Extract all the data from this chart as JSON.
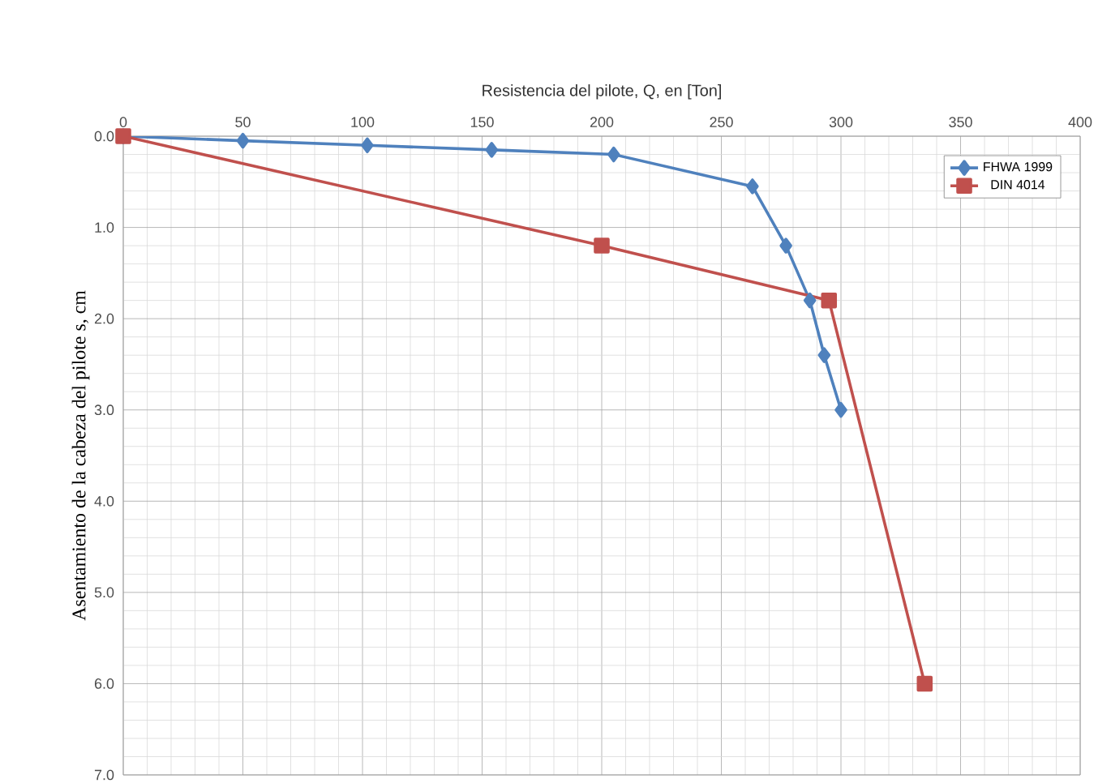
{
  "chart_data": {
    "type": "line",
    "xlabel": "Resistencia del pilote, Q, en [Ton]",
    "ylabel": "Asentamiento de la cabeza del pilote s, cm",
    "xlim": [
      0,
      400
    ],
    "xticks": [
      0,
      50,
      100,
      150,
      200,
      250,
      300,
      350,
      400
    ],
    "ylim": [
      7,
      0
    ],
    "yticks": [
      {
        "value": 0,
        "label": "0.0"
      },
      {
        "value": 1,
        "label": "1.0"
      },
      {
        "value": 2,
        "label": "2.0"
      },
      {
        "value": 3,
        "label": "3.0"
      },
      {
        "value": 4,
        "label": "4.0"
      },
      {
        "value": 5,
        "label": "5.0"
      },
      {
        "value": 6,
        "label": "6.0"
      },
      {
        "value": 7,
        "label": "7.0"
      }
    ],
    "grid": true,
    "legend": "top right",
    "series": [
      {
        "name": "FHWA 1999",
        "color": "#4f81bd",
        "marker": "diamond",
        "x": [
          0,
          50,
          102,
          154,
          205,
          263,
          277,
          287,
          293,
          300
        ],
        "values": [
          0,
          0.05,
          0.1,
          0.15,
          0.2,
          0.55,
          1.2,
          1.8,
          2.4,
          3.0
        ]
      },
      {
        "name": "DIN 4014",
        "color": "#c0504d",
        "marker": "square",
        "x": [
          0,
          200,
          295,
          335
        ],
        "values": [
          0,
          1.2,
          1.8,
          6.0
        ]
      }
    ]
  }
}
